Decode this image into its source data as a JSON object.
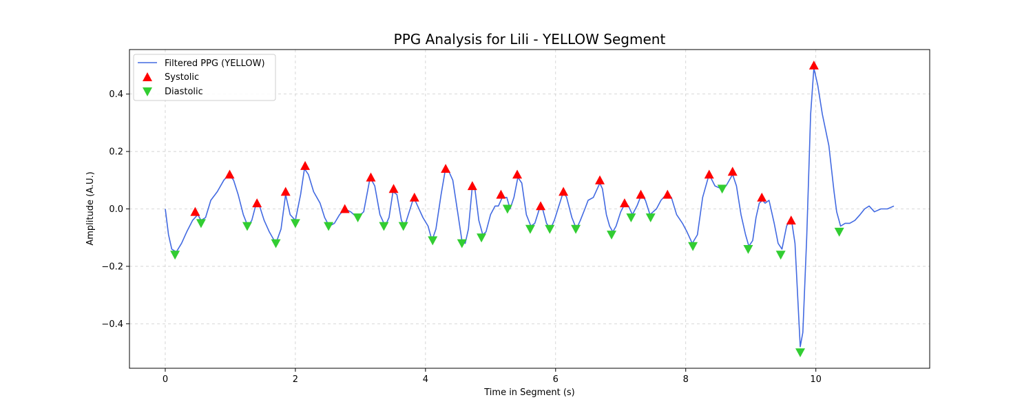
{
  "chart_data": {
    "type": "line",
    "title": "PPG Analysis for Lili - YELLOW Segment",
    "xlabel": "Time in Segment (s)",
    "ylabel": "Amplitude (A.U.)",
    "xlim": [
      -0.55,
      11.75
    ],
    "ylim": [
      -0.555,
      0.555
    ],
    "xticks": [
      0,
      2,
      4,
      6,
      8,
      10
    ],
    "yticks": [
      -0.4,
      -0.2,
      0.0,
      0.2,
      0.4
    ],
    "xtick_labels": [
      "0",
      "2",
      "4",
      "6",
      "8",
      "10"
    ],
    "ytick_labels": [
      "−0.4",
      "−0.2",
      "0.0",
      "0.2",
      "0.4"
    ],
    "grid": true,
    "legend_position": "upper-left",
    "colors": {
      "line": "#4169e1",
      "systolic": "#ff0000",
      "diastolic": "#32cd32",
      "grid": "#cccccc"
    },
    "series": [
      {
        "name": "Filtered PPG (YELLOW)",
        "kind": "line",
        "points": [
          [
            0.0,
            0.0
          ],
          [
            0.05,
            -0.09
          ],
          [
            0.1,
            -0.14
          ],
          [
            0.17,
            -0.15
          ],
          [
            0.25,
            -0.12
          ],
          [
            0.33,
            -0.08
          ],
          [
            0.42,
            -0.04
          ],
          [
            0.5,
            -0.02
          ],
          [
            0.55,
            -0.04
          ],
          [
            0.62,
            -0.03
          ],
          [
            0.7,
            0.03
          ],
          [
            0.8,
            0.06
          ],
          [
            0.9,
            0.1
          ],
          [
            0.98,
            0.12
          ],
          [
            1.05,
            0.1
          ],
          [
            1.12,
            0.05
          ],
          [
            1.2,
            -0.02
          ],
          [
            1.27,
            -0.06
          ],
          [
            1.33,
            -0.04
          ],
          [
            1.4,
            0.02
          ],
          [
            1.45,
            0.01
          ],
          [
            1.52,
            -0.04
          ],
          [
            1.6,
            -0.08
          ],
          [
            1.7,
            -0.12
          ],
          [
            1.78,
            -0.07
          ],
          [
            1.85,
            0.05
          ],
          [
            1.92,
            -0.02
          ],
          [
            2.0,
            -0.04
          ],
          [
            2.08,
            0.05
          ],
          [
            2.14,
            0.14
          ],
          [
            2.2,
            0.12
          ],
          [
            2.28,
            0.06
          ],
          [
            2.38,
            0.02
          ],
          [
            2.45,
            -0.03
          ],
          [
            2.52,
            -0.06
          ],
          [
            2.6,
            -0.05
          ],
          [
            2.68,
            -0.02
          ],
          [
            2.76,
            0.0
          ],
          [
            2.85,
            -0.01
          ],
          [
            2.95,
            -0.03
          ],
          [
            3.05,
            -0.01
          ],
          [
            3.15,
            0.11
          ],
          [
            3.22,
            0.08
          ],
          [
            3.3,
            -0.02
          ],
          [
            3.38,
            -0.06
          ],
          [
            3.44,
            -0.03
          ],
          [
            3.5,
            0.06
          ],
          [
            3.56,
            0.05
          ],
          [
            3.63,
            -0.04
          ],
          [
            3.68,
            -0.06
          ],
          [
            3.75,
            -0.01
          ],
          [
            3.82,
            0.04
          ],
          [
            3.88,
            0.01
          ],
          [
            3.96,
            -0.03
          ],
          [
            4.04,
            -0.06
          ],
          [
            4.1,
            -0.11
          ],
          [
            4.16,
            -0.07
          ],
          [
            4.24,
            0.05
          ],
          [
            4.3,
            0.13
          ],
          [
            4.36,
            0.13
          ],
          [
            4.42,
            0.1
          ],
          [
            4.5,
            -0.02
          ],
          [
            4.56,
            -0.11
          ],
          [
            4.61,
            -0.12
          ],
          [
            4.66,
            -0.07
          ],
          [
            4.72,
            0.08
          ],
          [
            4.76,
            0.07
          ],
          [
            4.82,
            -0.04
          ],
          [
            4.88,
            -0.09
          ],
          [
            4.93,
            -0.08
          ],
          [
            5.0,
            -0.02
          ],
          [
            5.07,
            0.01
          ],
          [
            5.12,
            0.01
          ],
          [
            5.18,
            0.04
          ],
          [
            5.25,
            0.04
          ],
          [
            5.3,
            0.0
          ],
          [
            5.36,
            0.04
          ],
          [
            5.42,
            0.11
          ],
          [
            5.48,
            0.09
          ],
          [
            5.55,
            -0.02
          ],
          [
            5.62,
            -0.06
          ],
          [
            5.68,
            -0.05
          ],
          [
            5.75,
            0.0
          ],
          [
            5.8,
            0.0
          ],
          [
            5.86,
            -0.05
          ],
          [
            5.92,
            -0.07
          ],
          [
            5.98,
            -0.04
          ],
          [
            6.05,
            0.01
          ],
          [
            6.12,
            0.06
          ],
          [
            6.17,
            0.04
          ],
          [
            6.25,
            -0.03
          ],
          [
            6.32,
            -0.07
          ],
          [
            6.38,
            -0.04
          ],
          [
            6.45,
            0.0
          ],
          [
            6.5,
            0.03
          ],
          [
            6.58,
            0.04
          ],
          [
            6.68,
            0.09
          ],
          [
            6.72,
            0.07
          ],
          [
            6.78,
            -0.02
          ],
          [
            6.83,
            -0.06
          ],
          [
            6.88,
            -0.08
          ],
          [
            6.93,
            -0.06
          ],
          [
            7.0,
            -0.01
          ],
          [
            7.07,
            0.02
          ],
          [
            7.12,
            0.01
          ],
          [
            7.18,
            -0.02
          ],
          [
            7.25,
            0.01
          ],
          [
            7.32,
            0.05
          ],
          [
            7.38,
            0.03
          ],
          [
            7.45,
            -0.02
          ],
          [
            7.55,
            0.0
          ],
          [
            7.62,
            0.03
          ],
          [
            7.7,
            0.05
          ],
          [
            7.78,
            0.04
          ],
          [
            7.86,
            -0.02
          ],
          [
            7.95,
            -0.05
          ],
          [
            8.02,
            -0.08
          ],
          [
            8.1,
            -0.12
          ],
          [
            8.18,
            -0.09
          ],
          [
            8.26,
            0.04
          ],
          [
            8.36,
            0.12
          ],
          [
            8.45,
            0.08
          ],
          [
            8.55,
            0.07
          ],
          [
            8.62,
            0.08
          ],
          [
            8.72,
            0.12
          ],
          [
            8.78,
            0.08
          ],
          [
            8.85,
            -0.02
          ],
          [
            8.92,
            -0.09
          ],
          [
            8.97,
            -0.13
          ],
          [
            9.03,
            -0.11
          ],
          [
            9.08,
            -0.03
          ],
          [
            9.13,
            0.02
          ],
          [
            9.18,
            0.03
          ],
          [
            9.22,
            0.02
          ],
          [
            9.28,
            0.03
          ],
          [
            9.36,
            -0.05
          ],
          [
            9.42,
            -0.12
          ],
          [
            9.48,
            -0.14
          ],
          [
            9.55,
            -0.06
          ],
          [
            9.62,
            -0.03
          ],
          [
            9.68,
            -0.12
          ],
          [
            9.72,
            -0.3
          ],
          [
            9.76,
            -0.48
          ],
          [
            9.8,
            -0.43
          ],
          [
            9.86,
            -0.1
          ],
          [
            9.92,
            0.33
          ],
          [
            9.97,
            0.49
          ],
          [
            10.03,
            0.43
          ],
          [
            10.1,
            0.33
          ],
          [
            10.2,
            0.22
          ],
          [
            10.28,
            0.06
          ],
          [
            10.32,
            -0.01
          ],
          [
            10.38,
            -0.06
          ],
          [
            10.45,
            -0.05
          ],
          [
            10.52,
            -0.05
          ],
          [
            10.6,
            -0.04
          ],
          [
            10.68,
            -0.02
          ],
          [
            10.75,
            0.0
          ],
          [
            10.82,
            0.01
          ],
          [
            10.9,
            -0.01
          ],
          [
            11.0,
            0.0
          ],
          [
            11.1,
            0.0
          ],
          [
            11.2,
            0.01
          ]
        ]
      },
      {
        "name": "Systolic",
        "kind": "markers",
        "marker": "triangle-up",
        "points": [
          [
            0.46,
            -0.01
          ],
          [
            0.99,
            0.12
          ],
          [
            1.41,
            0.02
          ],
          [
            1.85,
            0.06
          ],
          [
            2.15,
            0.15
          ],
          [
            2.76,
            0.0
          ],
          [
            3.16,
            0.11
          ],
          [
            3.51,
            0.07
          ],
          [
            3.83,
            0.04
          ],
          [
            4.31,
            0.14
          ],
          [
            4.72,
            0.08
          ],
          [
            5.16,
            0.05
          ],
          [
            5.41,
            0.12
          ],
          [
            5.77,
            0.01
          ],
          [
            6.12,
            0.06
          ],
          [
            6.68,
            0.1
          ],
          [
            7.06,
            0.02
          ],
          [
            7.31,
            0.05
          ],
          [
            7.72,
            0.05
          ],
          [
            8.36,
            0.12
          ],
          [
            8.72,
            0.13
          ],
          [
            9.17,
            0.04
          ],
          [
            9.62,
            -0.04
          ],
          [
            9.97,
            0.5
          ]
        ]
      },
      {
        "name": "Diastolic",
        "kind": "markers",
        "marker": "triangle-down",
        "points": [
          [
            0.15,
            -0.16
          ],
          [
            0.55,
            -0.05
          ],
          [
            1.26,
            -0.06
          ],
          [
            1.7,
            -0.12
          ],
          [
            2.0,
            -0.05
          ],
          [
            2.51,
            -0.06
          ],
          [
            2.96,
            -0.03
          ],
          [
            3.36,
            -0.06
          ],
          [
            3.66,
            -0.06
          ],
          [
            4.11,
            -0.11
          ],
          [
            4.56,
            -0.12
          ],
          [
            4.86,
            -0.1
          ],
          [
            5.26,
            0.0
          ],
          [
            5.61,
            -0.07
          ],
          [
            5.91,
            -0.07
          ],
          [
            6.31,
            -0.07
          ],
          [
            6.86,
            -0.09
          ],
          [
            7.16,
            -0.03
          ],
          [
            7.46,
            -0.03
          ],
          [
            8.11,
            -0.13
          ],
          [
            8.56,
            0.07
          ],
          [
            8.96,
            -0.14
          ],
          [
            9.46,
            -0.16
          ],
          [
            9.76,
            -0.5
          ],
          [
            10.36,
            -0.08
          ]
        ]
      }
    ]
  }
}
